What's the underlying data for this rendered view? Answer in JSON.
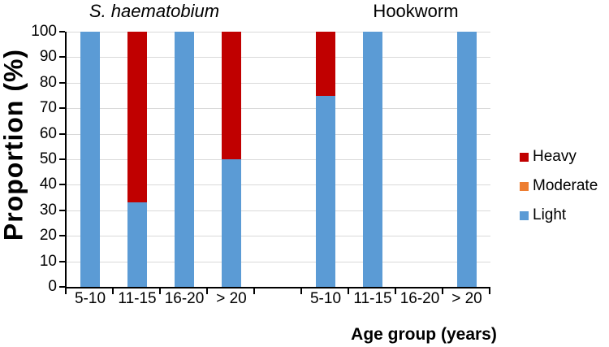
{
  "chart_data": {
    "type": "bar",
    "stacked": true,
    "group_titles": [
      {
        "label": "S. haematobium",
        "italic": true
      },
      {
        "label": "Hookworm",
        "italic": false
      }
    ],
    "categories": [
      "5-10",
      "11-15",
      "16-20",
      "> 20",
      "",
      "5-10",
      "11-15",
      "16-20",
      "> 20"
    ],
    "series": [
      {
        "name": "Light",
        "color": "#5B9BD5",
        "values": [
          100,
          33,
          100,
          50,
          0,
          75,
          100,
          0,
          100
        ]
      },
      {
        "name": "Moderate",
        "color": "#ED7D31",
        "values": [
          0,
          0,
          0,
          0,
          0,
          0,
          0,
          0,
          0
        ]
      },
      {
        "name": "Heavy",
        "color": "#C00000",
        "values": [
          0,
          67,
          0,
          50,
          0,
          25,
          0,
          0,
          0
        ]
      }
    ],
    "legend": [
      {
        "label": "Heavy",
        "color": "#C00000"
      },
      {
        "label": "Moderate",
        "color": "#ED7D31"
      },
      {
        "label": "Light",
        "color": "#5B9BD5"
      }
    ],
    "xlabel": "Age group (years)",
    "ylabel": "Proportion (%)",
    "ylim": [
      0,
      100
    ],
    "yticks": [
      0,
      10,
      20,
      30,
      40,
      50,
      60,
      70,
      80,
      90,
      100
    ],
    "grid": true,
    "legend_position": "right",
    "colors": {
      "grid": "#D9D9D9",
      "axis": "#000000",
      "text": "#000000"
    }
  }
}
